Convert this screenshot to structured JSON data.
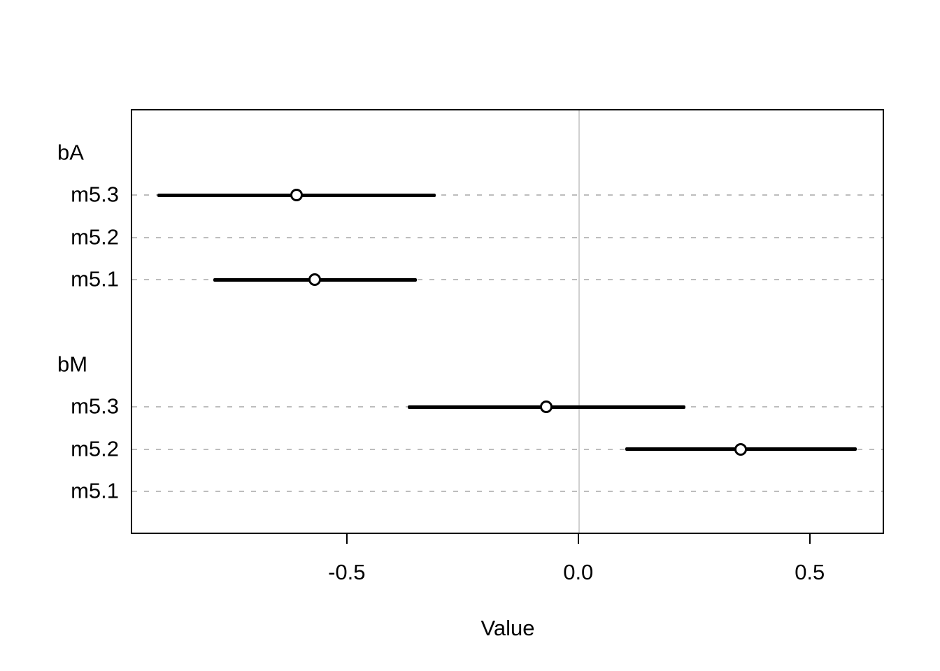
{
  "chart_data": {
    "type": "scatter",
    "subtype": "coefficient-dot-whisker-plot",
    "title": "",
    "xlabel": "Value",
    "ylabel": "",
    "xlim": [
      -0.965,
      0.659
    ],
    "xticks": [
      -0.5,
      0.0,
      0.5
    ],
    "xtick_labels": [
      "-0.5",
      "0.0",
      "0.5"
    ],
    "zero_reference_line": 0.0,
    "grid": "horizontal dashed gridlines on model rows only",
    "legend": "none",
    "rows": [
      {
        "label": "bA",
        "type": "group",
        "estimate": null,
        "lo": null,
        "hi": null
      },
      {
        "label": "m5.3",
        "type": "model",
        "estimate": -0.61,
        "lo": -0.91,
        "hi": -0.31
      },
      {
        "label": "m5.2",
        "type": "model",
        "estimate": null,
        "lo": null,
        "hi": null
      },
      {
        "label": "m5.1",
        "type": "model",
        "estimate": -0.57,
        "lo": -0.79,
        "hi": -0.35
      },
      {
        "label": "",
        "type": "spacer",
        "estimate": null,
        "lo": null,
        "hi": null
      },
      {
        "label": "bM",
        "type": "group",
        "estimate": null,
        "lo": null,
        "hi": null
      },
      {
        "label": "m5.3",
        "type": "model",
        "estimate": -0.07,
        "lo": -0.37,
        "hi": 0.23
      },
      {
        "label": "m5.2",
        "type": "model",
        "estimate": 0.35,
        "lo": 0.1,
        "hi": 0.6
      },
      {
        "label": "m5.1",
        "type": "model",
        "estimate": null,
        "lo": null,
        "hi": null
      }
    ],
    "colors": {
      "line": "#000000",
      "point_stroke": "#000000",
      "point_fill": "#ffffff",
      "grid_line": "#bdbdbd",
      "zero_line": "#d0d0d0",
      "border": "#000000",
      "text": "#000000",
      "background": "#ffffff"
    }
  }
}
